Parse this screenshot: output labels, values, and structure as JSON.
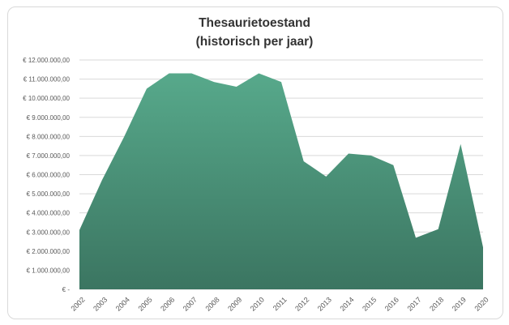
{
  "chart_data": {
    "type": "area",
    "title": [
      "Thesaurietoestand",
      "(historisch per jaar)"
    ],
    "categories": [
      "2002",
      "2003",
      "2004",
      "2005",
      "2006",
      "2007",
      "2008",
      "2009",
      "2010",
      "2011",
      "2012",
      "2013",
      "2014",
      "2015",
      "2016",
      "2017",
      "2018",
      "2019",
      "2020"
    ],
    "series": [
      {
        "values": [
          3100000,
          5700000,
          8000000,
          10500000,
          11300000,
          11300000,
          10850000,
          10600000,
          11300000,
          10850000,
          6700000,
          5900000,
          7100000,
          7000000,
          6500000,
          2700000,
          3150000,
          7600000,
          2200000
        ]
      }
    ],
    "ylim": [
      0,
      12000000
    ],
    "ytick_values": [
      0,
      1000000,
      2000000,
      3000000,
      4000000,
      5000000,
      6000000,
      7000000,
      8000000,
      9000000,
      10000000,
      11000000,
      12000000
    ],
    "ytick_labels": [
      "€ -",
      "€ 1.000.000,00",
      "€ 2.000.000,00",
      "€ 3.000.000,00",
      "€ 4.000.000,00",
      "€ 5.000.000,00",
      "€ 6.000.000,00",
      "€ 7.000.000,00",
      "€ 8.000.000,00",
      "€ 9.000.000,00",
      "€ 10.000.000,00",
      "€ 11.000.000,00",
      "€ 12.000.000,00"
    ],
    "grid": true,
    "colors": {
      "area_top": "#57a98b",
      "area_bottom": "#3b7561",
      "grid": "#d9d9d9"
    }
  }
}
